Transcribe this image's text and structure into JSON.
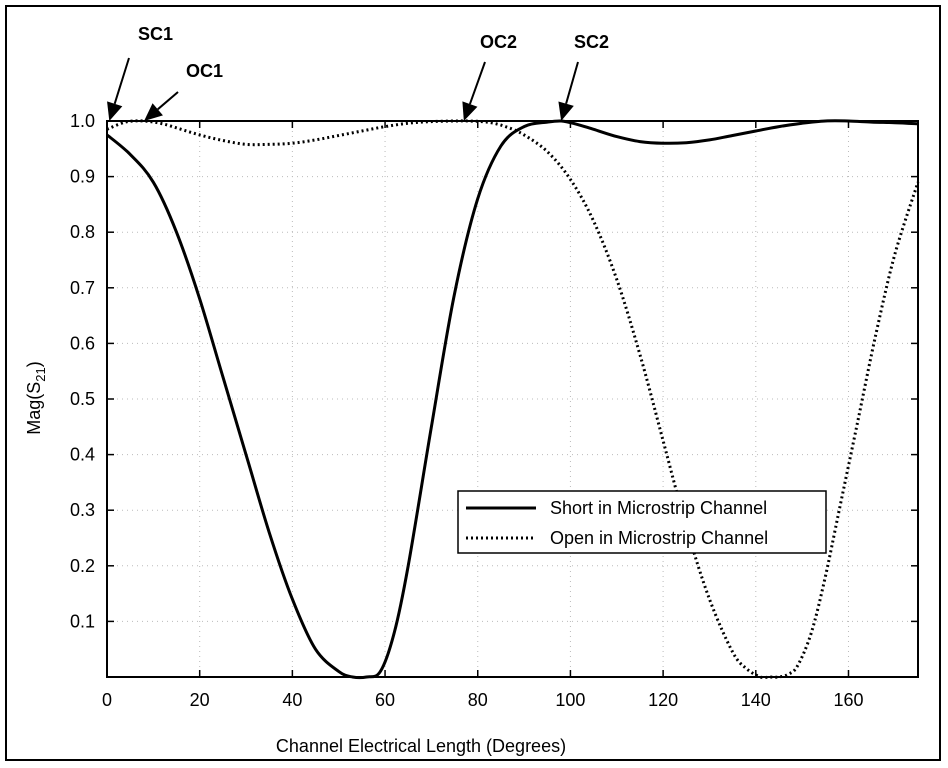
{
  "chart_data": {
    "type": "line",
    "title": "",
    "xlabel": "Channel Electrical Length (Degrees)",
    "ylabel_main": "Mag(S",
    "ylabel_sub": "21",
    "ylabel_close": ")",
    "xlim": [
      0,
      175
    ],
    "ylim": [
      0,
      1.0
    ],
    "xticks": [
      0,
      20,
      40,
      60,
      80,
      100,
      120,
      140,
      160
    ],
    "yticks": [
      0.1,
      0.2,
      0.3,
      0.4,
      0.5,
      0.6,
      0.7,
      0.8,
      0.9,
      1.0
    ],
    "ytick_labels": [
      "0.1",
      "0.2",
      "0.3",
      "0.4",
      "0.5",
      "0.6",
      "0.7",
      "0.8",
      "0.9",
      "1.0"
    ],
    "grid": true,
    "legend_position": "center-right",
    "series": [
      {
        "name": "Short in Microstrip Channel",
        "style": "solid",
        "x": [
          0,
          5,
          10,
          15,
          20,
          25,
          30,
          35,
          40,
          45,
          50,
          53,
          56,
          59,
          62,
          65,
          70,
          75,
          80,
          85,
          90,
          95,
          98,
          101,
          105,
          110,
          115,
          120,
          125,
          130,
          135,
          140,
          145,
          150,
          155,
          160,
          165,
          170,
          175
        ],
        "y": [
          0.975,
          0.94,
          0.89,
          0.8,
          0.68,
          0.54,
          0.4,
          0.26,
          0.14,
          0.05,
          0.01,
          0.0,
          0.0,
          0.01,
          0.08,
          0.2,
          0.45,
          0.69,
          0.86,
          0.955,
          0.99,
          0.998,
          1.0,
          0.995,
          0.985,
          0.972,
          0.963,
          0.96,
          0.961,
          0.966,
          0.974,
          0.982,
          0.99,
          0.996,
          1.0,
          1.0,
          0.998,
          0.997,
          0.995
        ]
      },
      {
        "name": "Open in Microstrip Channel",
        "style": "dotted",
        "x": [
          0,
          4,
          8,
          12,
          16,
          20,
          25,
          30,
          35,
          40,
          45,
          50,
          55,
          60,
          65,
          70,
          75,
          78,
          82,
          86,
          90,
          95,
          100,
          105,
          110,
          115,
          120,
          125,
          130,
          135,
          138,
          141,
          143,
          145,
          147,
          149,
          152,
          155,
          158,
          162,
          166,
          170,
          175
        ],
        "y": [
          0.985,
          0.998,
          1.0,
          0.995,
          0.985,
          0.975,
          0.965,
          0.958,
          0.958,
          0.96,
          0.966,
          0.974,
          0.982,
          0.99,
          0.996,
          0.999,
          1.0,
          1.0,
          0.998,
          0.99,
          0.975,
          0.945,
          0.895,
          0.82,
          0.715,
          0.58,
          0.425,
          0.27,
          0.14,
          0.045,
          0.015,
          0.0,
          0.0,
          0.0,
          0.005,
          0.02,
          0.08,
          0.18,
          0.3,
          0.46,
          0.62,
          0.76,
          0.89
        ]
      }
    ],
    "annotations": [
      {
        "label": "SC1",
        "x": 0.5,
        "y": 1.0
      },
      {
        "label": "OC1",
        "x": 8,
        "y": 1.0
      },
      {
        "label": "OC2",
        "x": 77,
        "y": 1.0
      },
      {
        "label": "SC2",
        "x": 98,
        "y": 1.0
      }
    ]
  }
}
